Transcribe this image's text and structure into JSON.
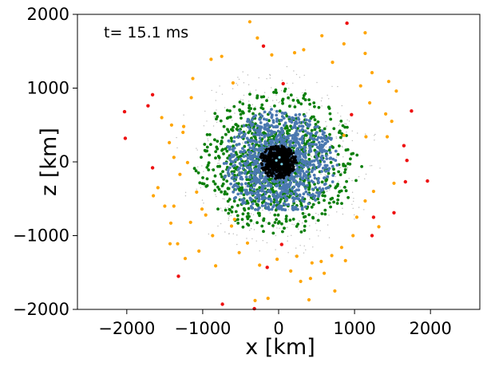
{
  "chart_data": {
    "type": "scatter",
    "title": "",
    "annotation": "t= 15.1 ms",
    "xlabel": "x [km]",
    "ylabel": "z [km]",
    "xlim": [
      -2650,
      2650
    ],
    "ylim": [
      -2000,
      2000
    ],
    "xticks": [
      -2000,
      -1000,
      0,
      1000,
      2000
    ],
    "xtick_labels": [
      "−2000",
      "−1000",
      "0",
      "1000",
      "2000"
    ],
    "yticks": [
      -2000,
      -1000,
      0,
      1000,
      2000
    ],
    "ytick_labels": [
      "−2000",
      "−1000",
      "0",
      "1000",
      "2000"
    ],
    "grid": false,
    "legend": "none",
    "colors": {
      "core": "#000000",
      "grey": "#8a8a8a",
      "blue": "#4a78b0",
      "green": "#0a7f0a",
      "orange": "#ffa500",
      "red": "#ee1111",
      "cyan": "#7ad0e6"
    },
    "series": [
      {
        "name": "red",
        "color": "#ee1111",
        "x": [
          900,
          -200,
          60,
          -1660,
          -1720,
          -2030,
          -2020,
          1750,
          1650,
          1960,
          -1660,
          1670,
          1250,
          1520,
          1230,
          1690,
          960,
          -1320,
          -740,
          40,
          -150,
          -320
        ],
        "y": [
          1880,
          1570,
          1060,
          910,
          760,
          680,
          320,
          690,
          220,
          -260,
          -80,
          -270,
          -750,
          -690,
          -1000,
          20,
          640,
          -1550,
          -1930,
          -1120,
          -1430,
          -1990
        ]
      },
      {
        "name": "orange",
        "color": "#ffa500",
        "x": [
          -380,
          1140,
          -280,
          -90,
          210,
          570,
          330,
          860,
          -890,
          -750,
          710,
          1230,
          1080,
          -1130,
          -1150,
          -600,
          1140,
          1450,
          1550,
          -1250,
          -1260,
          -1540,
          -1410,
          1410,
          1490,
          -1440,
          -1380,
          -1200,
          -1300,
          -1080,
          1430,
          1150,
          -1650,
          -1500,
          1520,
          -1420,
          1250,
          1140,
          -1010,
          -960,
          -1430,
          1320,
          980,
          830,
          700,
          440,
          -830,
          420,
          -250,
          -20,
          160,
          600,
          880,
          -1050,
          -410,
          -620,
          -870,
          -1160,
          240,
          290,
          560,
          740,
          -140,
          -310,
          1030,
          -520,
          -1230,
          -1330,
          400,
          -1590,
          860,
          1200,
          -1380,
          -580
        ],
        "y": [
          1900,
          1750,
          1680,
          1450,
          1480,
          1710,
          1520,
          1600,
          1390,
          1430,
          1350,
          1210,
          1030,
          1130,
          870,
          1070,
          1470,
          1090,
          960,
          480,
          400,
          600,
          500,
          650,
          550,
          260,
          60,
          -10,
          -170,
          -410,
          340,
          340,
          -460,
          -600,
          -290,
          -830,
          -400,
          -530,
          -640,
          -720,
          -1110,
          -880,
          -1000,
          -1160,
          -1270,
          -1370,
          -1410,
          -1580,
          -1400,
          -1320,
          -1480,
          -1510,
          -1340,
          -1210,
          -1100,
          -870,
          -1000,
          -820,
          -1280,
          -1620,
          -1350,
          -1750,
          -1850,
          -1880,
          -750,
          -1230,
          -1310,
          -1110,
          -1870,
          -350,
          360,
          800,
          -600,
          -780
        ]
      },
      {
        "name": "green",
        "cloud": true,
        "color": "#0a7f0a",
        "count": 820,
        "center": [
          0,
          0
        ],
        "r_min": 250,
        "r_max": 1000,
        "falloff": 1.1,
        "seed": 11
      },
      {
        "name": "blue",
        "cloud": true,
        "color": "#4a78b0",
        "count": 1100,
        "center": [
          0,
          0
        ],
        "r_min": 100,
        "r_max": 720,
        "falloff": 1.0,
        "seed": 23
      },
      {
        "name": "grey",
        "cloud": true,
        "color": "#8a8a8a",
        "count": 1100,
        "center": [
          0,
          0
        ],
        "r_min": 0,
        "r_max": 1300,
        "falloff": 1.8,
        "seed": 37
      },
      {
        "name": "core",
        "cloud": true,
        "color": "#000000",
        "count": 700,
        "center": [
          0,
          0
        ],
        "r_min": 0,
        "r_max": 230,
        "falloff": 0.8,
        "seed": 51
      },
      {
        "name": "cyan",
        "color": "#7ad0e6",
        "x": [
          -30,
          40,
          10
        ],
        "y": [
          20,
          -30,
          60
        ]
      }
    ]
  }
}
